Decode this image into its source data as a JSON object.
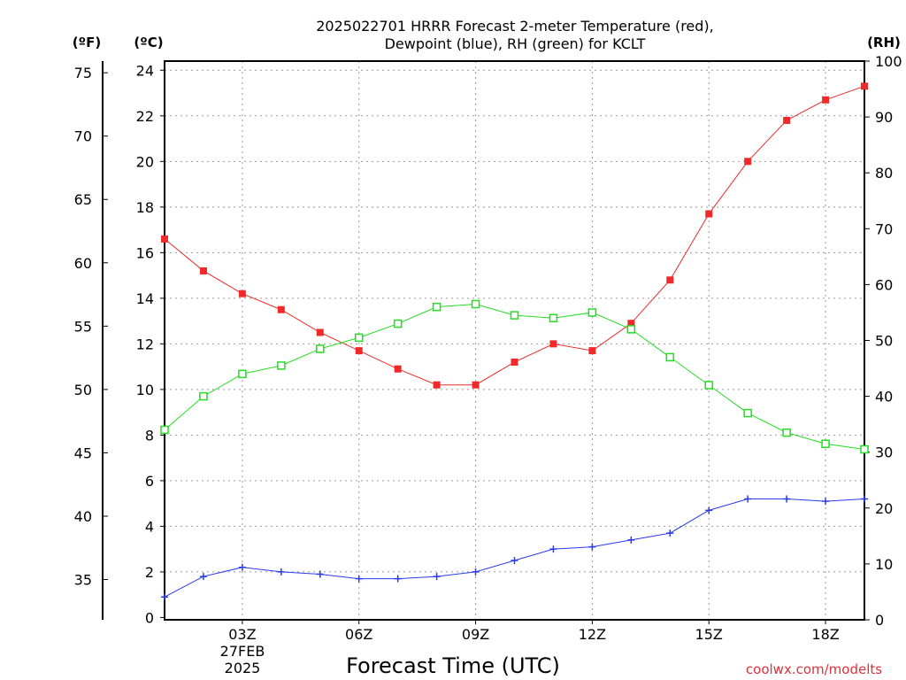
{
  "chart_data": {
    "type": "line",
    "title_line1": "2025022701 HRRR Forecast 2-meter Temperature (red),",
    "title_line2": "Dewpoint (blue), RH (green) for KCLT",
    "xlabel": "Forecast Time (UTC)",
    "credit": "coolwx.com/modelts",
    "unit_f": "(ºF)",
    "unit_c": "(ºC)",
    "unit_rh": "(RH)",
    "date_label_1": "27FEB",
    "date_label_2": "2025",
    "x": [
      1,
      2,
      3,
      4,
      5,
      6,
      7,
      8,
      9,
      10,
      11,
      12,
      13,
      14,
      15,
      16,
      17,
      18,
      19
    ],
    "x_ticks": [
      {
        "x": 3,
        "label": "03Z"
      },
      {
        "x": 6,
        "label": "06Z"
      },
      {
        "x": 9,
        "label": "09Z"
      },
      {
        "x": 12,
        "label": "12Z"
      },
      {
        "x": 15,
        "label": "15Z"
      },
      {
        "x": 18,
        "label": "18Z"
      }
    ],
    "xlim": [
      1,
      19
    ],
    "ylim_c": [
      -0.1,
      24.4
    ],
    "yticks_c": [
      0,
      2,
      4,
      6,
      8,
      10,
      12,
      14,
      16,
      18,
      20,
      22,
      24
    ],
    "yticks_f": [
      35,
      40,
      45,
      50,
      55,
      60,
      65,
      70,
      75
    ],
    "yticks_rh": [
      0,
      10,
      20,
      30,
      40,
      50,
      60,
      70,
      80,
      90,
      100
    ],
    "grid": true,
    "series": [
      {
        "name": "Temperature (red)",
        "axis": "C",
        "color": "#ee2a2a",
        "marker": "filled-square",
        "values": [
          16.6,
          15.2,
          14.2,
          13.5,
          12.5,
          11.7,
          10.9,
          10.2,
          10.2,
          11.2,
          12.0,
          11.7,
          12.9,
          14.8,
          17.7,
          20.0,
          21.8,
          22.7,
          23.3
        ]
      },
      {
        "name": "Dewpoint (blue)",
        "axis": "C",
        "color": "#2a3aee",
        "marker": "plus",
        "values": [
          0.9,
          1.8,
          2.2,
          2.0,
          1.9,
          1.7,
          1.7,
          1.8,
          2.0,
          2.5,
          3.0,
          3.1,
          3.4,
          3.7,
          4.7,
          5.2,
          5.2,
          5.1,
          5.2
        ]
      },
      {
        "name": "RH (green)",
        "axis": "RH",
        "color": "#22dd22",
        "marker": "open-square",
        "values": [
          34,
          40,
          44,
          45.5,
          48.5,
          50.5,
          53,
          56,
          56.5,
          54.5,
          54,
          55,
          52,
          47,
          42,
          37,
          33.5,
          31.5,
          30.5
        ]
      }
    ]
  }
}
